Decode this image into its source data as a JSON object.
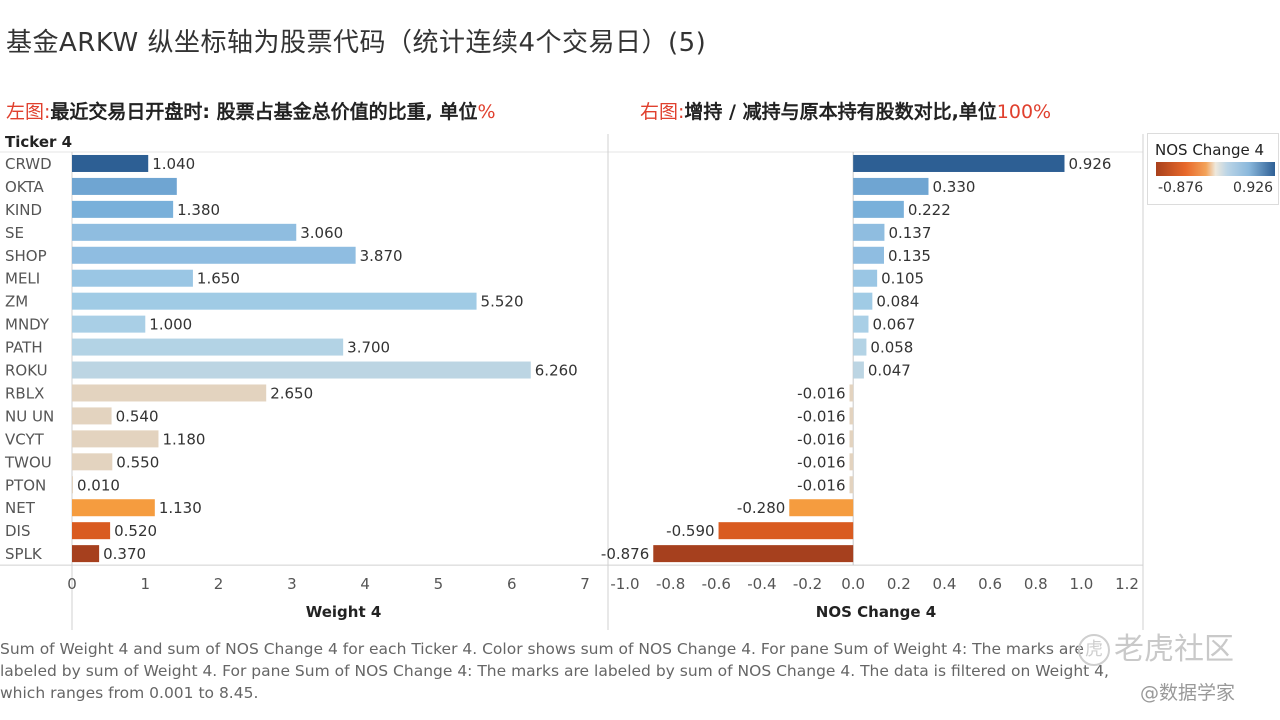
{
  "title": "基金ARKW  纵坐标轴为股票代码（统计连续4个交易日）(5)",
  "subtitle_left": {
    "label": "左图:",
    "text": "最近交易日开盘时: 股票占基金总价值的比重, 单位",
    "unit": "%"
  },
  "subtitle_right": {
    "label": "右图:",
    "text": "增持 / 减持与原本持有股数对比,单位",
    "unit": "100%"
  },
  "chart_data": {
    "type": "bar",
    "orientation": "horizontal",
    "row_header": "Ticker 4",
    "categories": [
      "CRWD",
      "OKTA",
      "KIND",
      "SE",
      "SHOP",
      "MELI",
      "ZM",
      "MNDY",
      "PATH",
      "ROKU",
      "RBLX",
      "NU UN",
      "VCYT",
      "TWOU",
      "PTON",
      "NET",
      "DIS",
      "SPLK"
    ],
    "series": [
      {
        "name": "Weight 4",
        "values": [
          1.04,
          1.43,
          1.38,
          3.06,
          3.87,
          1.65,
          5.52,
          1.0,
          3.7,
          6.26,
          2.65,
          0.54,
          1.18,
          0.55,
          0.01,
          1.13,
          0.52,
          0.37
        ],
        "labels": [
          "1.040",
          null,
          "1.380",
          "3.060",
          "3.870",
          "1.650",
          "5.520",
          "1.000",
          "3.700",
          "6.260",
          "2.650",
          "0.540",
          "1.180",
          "0.550",
          "0.010",
          "1.130",
          "0.520",
          "0.370"
        ],
        "xlabel": "Weight 4",
        "xlim": [
          0,
          7.3
        ],
        "ticks": [
          0,
          1,
          2,
          3,
          4,
          5,
          6,
          7
        ],
        "tick_labels": [
          "0",
          "1",
          "2",
          "3",
          "4",
          "5",
          "6",
          "7"
        ]
      },
      {
        "name": "NOS Change 4",
        "values": [
          0.926,
          0.33,
          0.222,
          0.137,
          0.135,
          0.105,
          0.084,
          0.067,
          0.058,
          0.047,
          -0.016,
          -0.016,
          -0.016,
          -0.016,
          -0.016,
          -0.28,
          -0.59,
          -0.876
        ],
        "labels": [
          "0.926",
          "0.330",
          "0.222",
          "0.137",
          "0.135",
          "0.105",
          "0.084",
          "0.067",
          "0.058",
          "0.047",
          "-0.016",
          "-0.016",
          "-0.016",
          "-0.016",
          "-0.016",
          "-0.280",
          "-0.590",
          "-0.876"
        ],
        "xlabel": "NOS Change 4",
        "xlim": [
          -1.07,
          1.27
        ],
        "ticks": [
          -1.0,
          -0.8,
          -0.6,
          -0.4,
          -0.2,
          0.0,
          0.2,
          0.4,
          0.6,
          0.8,
          1.0,
          1.2
        ],
        "tick_labels": [
          "-1.0",
          "-0.8",
          "-0.6",
          "-0.4",
          "-0.2",
          "0.0",
          "0.2",
          "0.4",
          "0.6",
          "0.8",
          "1.0",
          "1.2"
        ]
      }
    ],
    "color_by": "NOS Change 4",
    "colors": [
      "#2d5f94",
      "#6fa5d2",
      "#79b0da",
      "#8fbde0",
      "#8fbde1",
      "#9ac6e4",
      "#a0cbe5",
      "#a9cfe6",
      "#b3d3e5",
      "#bcd5e3",
      "#e3d3bf",
      "#e3d3bf",
      "#e3d3bf",
      "#e3d3bf",
      "#e3d3bf",
      "#f59c3f",
      "#d95b20",
      "#a6401e"
    ]
  },
  "legend": {
    "title": "NOS Change 4",
    "min_label": "-0.876",
    "max_label": "0.926"
  },
  "caption": "Sum of Weight 4 and sum of NOS Change 4 for each Ticker 4.  Color shows sum of NOS Change 4.  For pane Sum of Weight 4:  The marks are labeled by sum of Weight 4.  For pane Sum of NOS Change 4:  The marks are labeled by sum of NOS Change 4. The data is filtered on Weight 4, which ranges from 0.001 to 8.45.",
  "watermark": {
    "brand": "老虎社区",
    "handle": "@数据学家",
    "ring_glyph": "虎"
  }
}
